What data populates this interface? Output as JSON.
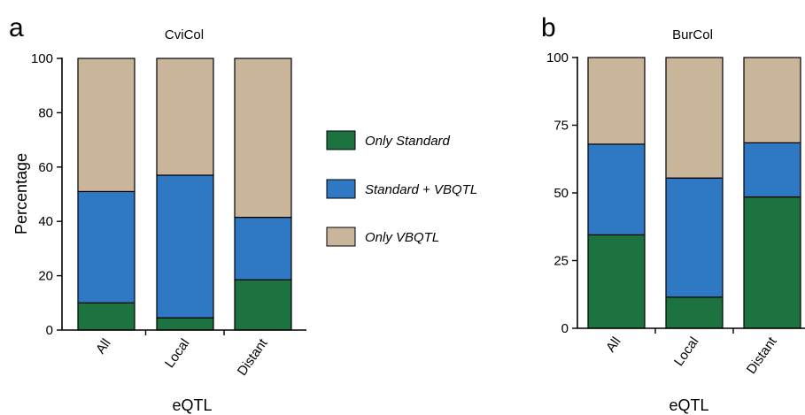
{
  "legend": {
    "entries": [
      {
        "label": "Only Standard",
        "color": "#1c7340"
      },
      {
        "label": "Standard + VBQTL",
        "color": "#2f78c4"
      },
      {
        "label": "Only VBQTL",
        "color": "#c9b59a"
      }
    ]
  },
  "chart_data": [
    {
      "type": "bar",
      "stacked": true,
      "panel": "a",
      "title": "CviCol",
      "xlabel": "eQTL",
      "ylabel": "Percentage",
      "ylim": [
        0,
        100
      ],
      "yticks": [
        0,
        20,
        40,
        60,
        80,
        100
      ],
      "categories": [
        "All",
        "Local",
        "Distant"
      ],
      "series": [
        {
          "name": "Only Standard",
          "color": "#1c7340",
          "values": [
            10,
            4.5,
            18.5
          ]
        },
        {
          "name": "Standard + VBQTL",
          "color": "#2f78c4",
          "values": [
            41,
            52.5,
            23
          ]
        },
        {
          "name": "Only VBQTL",
          "color": "#c9b59a",
          "values": [
            49,
            43,
            58.5
          ]
        }
      ]
    },
    {
      "type": "bar",
      "stacked": true,
      "panel": "b",
      "title": "BurCol",
      "xlabel": "eQTL",
      "ylabel": "",
      "ylim": [
        0,
        100
      ],
      "yticks": [
        0,
        25,
        50,
        75,
        100
      ],
      "categories": [
        "All",
        "Local",
        "Distant"
      ],
      "series": [
        {
          "name": "Only Standard",
          "color": "#1c7340",
          "values": [
            34.5,
            11.5,
            48.5
          ]
        },
        {
          "name": "Standard + VBQTL",
          "color": "#2f78c4",
          "values": [
            33.5,
            44,
            20
          ]
        },
        {
          "name": "Only VBQTL",
          "color": "#c9b59a",
          "values": [
            32,
            44.5,
            31.5
          ]
        }
      ]
    }
  ]
}
